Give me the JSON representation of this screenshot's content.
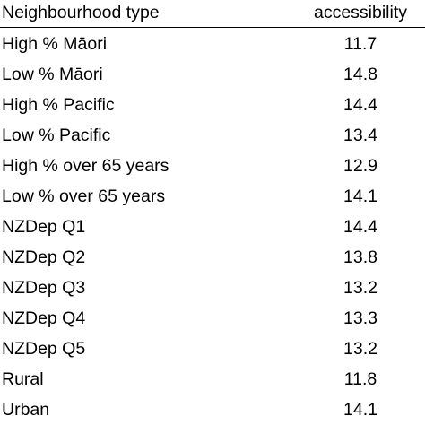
{
  "table": {
    "headers": {
      "type": "Neighbourhood type",
      "accessibility": "accessibility"
    },
    "rows": [
      {
        "type": "High % Māori",
        "accessibility": "11.7"
      },
      {
        "type": "Low % Māori",
        "accessibility": "14.8"
      },
      {
        "type": "High % Pacific",
        "accessibility": "14.4"
      },
      {
        "type": "Low % Pacific",
        "accessibility": "13.4"
      },
      {
        "type": "High % over 65 years",
        "accessibility": "12.9"
      },
      {
        "type": "Low % over 65 years",
        "accessibility": "14.1"
      },
      {
        "type": "NZDep Q1",
        "accessibility": "14.4"
      },
      {
        "type": "NZDep Q2",
        "accessibility": "13.8"
      },
      {
        "type": "NZDep Q3",
        "accessibility": "13.2"
      },
      {
        "type": "NZDep Q4",
        "accessibility": "13.3"
      },
      {
        "type": "NZDep Q5",
        "accessibility": "13.2"
      },
      {
        "type": "Rural",
        "accessibility": "11.8"
      },
      {
        "type": "Urban",
        "accessibility": "14.1"
      }
    ]
  }
}
